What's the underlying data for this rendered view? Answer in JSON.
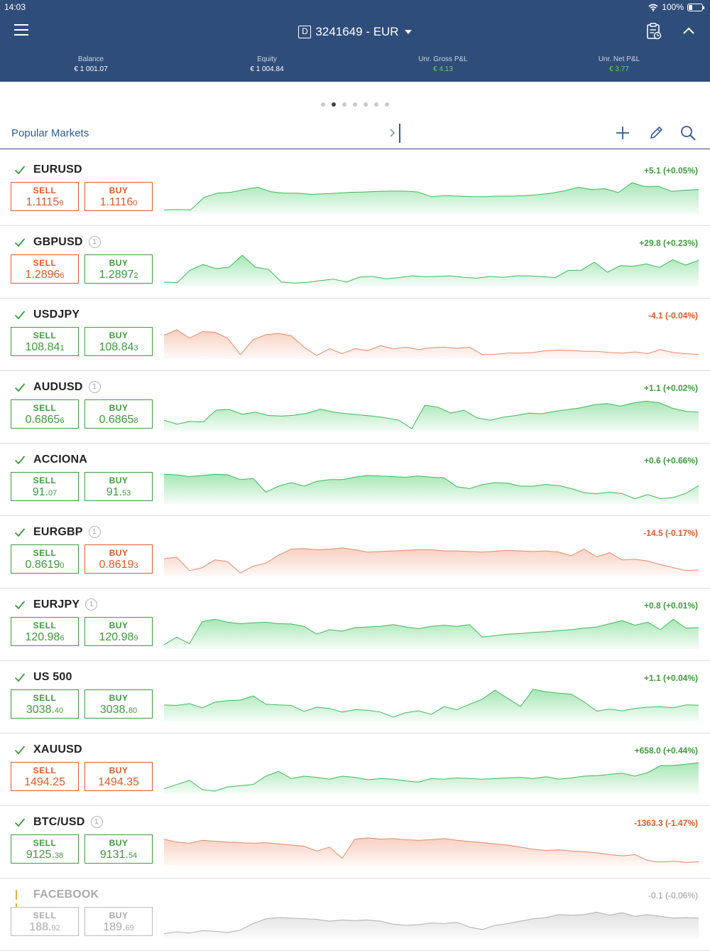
{
  "status_bar": {
    "time": "14:03",
    "battery": "100%"
  },
  "header": {
    "account_prefix": "D",
    "account": "3241649 - EUR",
    "stats": [
      {
        "label": "Balance",
        "value": "€ 1 001.07",
        "positive": false
      },
      {
        "label": "Equity",
        "value": "€ 1 004.84",
        "positive": false
      },
      {
        "label": "Unr. Gross P&L",
        "value": "€ 4.13",
        "positive": true
      },
      {
        "label": "Unr. Net P&L",
        "value": "€ 3.77",
        "positive": true
      }
    ]
  },
  "page_dots": {
    "count": 7,
    "active": 1
  },
  "watchlist": {
    "title": "Popular Markets"
  },
  "colors": {
    "header_bg": "#2f4d7a",
    "positive": "#3f9a3f",
    "negative": "#e05a2a",
    "inactive": "#aaaaaa"
  },
  "markets": [
    {
      "symbol": "EURUSD",
      "badge": "",
      "state": "active",
      "change": "+5.1 (+0.05%)",
      "direction": "pos",
      "sell": {
        "label": "SELL",
        "main": "1.1115",
        "pip": "9",
        "color": "red"
      },
      "buy": {
        "label": "BUY",
        "main": "1.1116",
        "pip": "0",
        "color": "red"
      },
      "spark": [
        0.04,
        0.05,
        0.04,
        0.46,
        0.6,
        0.63,
        0.72,
        0.8,
        0.65,
        0.6,
        0.6,
        0.56,
        0.58,
        0.6,
        0.63,
        0.64,
        0.66,
        0.67,
        0.67,
        0.64,
        0.48,
        0.52,
        0.5,
        0.48,
        0.48,
        0.5,
        0.5,
        0.52,
        0.55,
        0.6,
        0.68,
        0.8,
        0.72,
        0.75,
        0.62,
        0.95,
        0.82,
        0.83,
        0.66,
        0.7,
        0.72
      ]
    },
    {
      "symbol": "GBPUSD",
      "badge": "1",
      "state": "active",
      "change": "+29.8 (+0.23%)",
      "direction": "pos",
      "sell": {
        "label": "SELL",
        "main": "1.2896",
        "pip": "6",
        "color": "red"
      },
      "buy": {
        "label": "BUY",
        "main": "1.2897",
        "pip": "2",
        "color": "green"
      },
      "spark": [
        0.05,
        0.03,
        0.45,
        0.64,
        0.5,
        0.55,
        0.95,
        0.55,
        0.48,
        0.05,
        0.02,
        0.04,
        0.1,
        0.15,
        0.05,
        0.22,
        0.24,
        0.16,
        0.2,
        0.26,
        0.23,
        0.24,
        0.26,
        0.21,
        0.18,
        0.24,
        0.21,
        0.26,
        0.26,
        0.23,
        0.2,
        0.44,
        0.45,
        0.72,
        0.38,
        0.6,
        0.58,
        0.66,
        0.54,
        0.8,
        0.62,
        0.78
      ]
    },
    {
      "symbol": "USDJPY",
      "badge": "",
      "state": "active",
      "change": "-4.1 (-0.04%)",
      "direction": "neg",
      "sell": {
        "label": "SELL",
        "main": "108.84",
        "pip": "1",
        "color": "green"
      },
      "buy": {
        "label": "BUY",
        "main": "108.84",
        "pip": "3",
        "color": "green"
      },
      "spark": [
        0.7,
        0.88,
        0.6,
        0.82,
        0.8,
        0.6,
        0.05,
        0.55,
        0.72,
        0.76,
        0.68,
        0.3,
        0.02,
        0.25,
        0.08,
        0.25,
        0.18,
        0.35,
        0.24,
        0.3,
        0.22,
        0.28,
        0.3,
        0.26,
        0.3,
        0.05,
        0.06,
        0.1,
        0.1,
        0.12,
        0.18,
        0.2,
        0.19,
        0.16,
        0.16,
        0.12,
        0.1,
        0.14,
        0.08,
        0.22,
        0.12,
        0.08,
        0.06
      ]
    },
    {
      "symbol": "AUDUSD",
      "badge": "1",
      "state": "active",
      "change": "+1.1 (+0.02%)",
      "direction": "pos",
      "sell": {
        "label": "SELL",
        "main": "0.6865",
        "pip": "6",
        "color": "green"
      },
      "buy": {
        "label": "BUY",
        "main": "0.6865",
        "pip": "8",
        "color": "green"
      },
      "spark": [
        0.28,
        0.15,
        0.24,
        0.22,
        0.62,
        0.64,
        0.48,
        0.55,
        0.44,
        0.42,
        0.45,
        0.52,
        0.65,
        0.55,
        0.5,
        0.46,
        0.42,
        0.36,
        0.28,
        0.0,
        0.78,
        0.72,
        0.52,
        0.62,
        0.36,
        0.28,
        0.38,
        0.44,
        0.52,
        0.5,
        0.58,
        0.64,
        0.7,
        0.8,
        0.84,
        0.75,
        0.86,
        0.92,
        0.86,
        0.68,
        0.58,
        0.55
      ]
    },
    {
      "symbol": "ACCIONA",
      "badge": "",
      "state": "active",
      "change": "+0.6 (+0.66%)",
      "direction": "pos",
      "sell": {
        "label": "SELL",
        "main": "91.",
        "pip": "07",
        "color": "green"
      },
      "buy": {
        "label": "BUY",
        "main": "91.",
        "pip": "53",
        "color": "green"
      },
      "spark": [
        0.9,
        0.88,
        0.82,
        0.86,
        0.9,
        0.88,
        0.72,
        0.76,
        0.3,
        0.5,
        0.62,
        0.5,
        0.66,
        0.72,
        0.72,
        0.8,
        0.86,
        0.84,
        0.82,
        0.8,
        0.84,
        0.8,
        0.78,
        0.48,
        0.42,
        0.55,
        0.62,
        0.6,
        0.5,
        0.5,
        0.56,
        0.52,
        0.42,
        0.28,
        0.25,
        0.3,
        0.25,
        0.08,
        0.22,
        0.08,
        0.12,
        0.26,
        0.52
      ]
    },
    {
      "symbol": "EURGBP",
      "badge": "1",
      "state": "active",
      "change": "-14.5 (-0.17%)",
      "direction": "neg",
      "sell": {
        "label": "SELL",
        "main": "0.8619",
        "pip": "0",
        "color": "green"
      },
      "buy": {
        "label": "BUY",
        "main": "0.8619",
        "pip": "3",
        "color": "red"
      },
      "spark": [
        0.5,
        0.55,
        0.1,
        0.2,
        0.46,
        0.4,
        0.02,
        0.25,
        0.35,
        0.62,
        0.82,
        0.84,
        0.8,
        0.82,
        0.86,
        0.8,
        0.72,
        0.74,
        0.76,
        0.78,
        0.8,
        0.8,
        0.76,
        0.76,
        0.74,
        0.72,
        0.75,
        0.78,
        0.76,
        0.74,
        0.76,
        0.72,
        0.6,
        0.82,
        0.56,
        0.7,
        0.46,
        0.48,
        0.42,
        0.3,
        0.2,
        0.1,
        0.12
      ]
    },
    {
      "symbol": "EURJPY",
      "badge": "1",
      "state": "active",
      "change": "+0.8 (+0.01%)",
      "direction": "pos",
      "sell": {
        "label": "SELL",
        "main": "120.98",
        "pip": "6",
        "color": "green"
      },
      "buy": {
        "label": "BUY",
        "main": "120.98",
        "pip": "9",
        "color": "green"
      },
      "spark": [
        0.05,
        0.3,
        0.08,
        0.82,
        0.9,
        0.8,
        0.75,
        0.78,
        0.8,
        0.75,
        0.74,
        0.66,
        0.4,
        0.55,
        0.5,
        0.62,
        0.64,
        0.66,
        0.72,
        0.64,
        0.58,
        0.66,
        0.7,
        0.66,
        0.72,
        0.3,
        0.35,
        0.4,
        0.42,
        0.46,
        0.48,
        0.52,
        0.55,
        0.6,
        0.64,
        0.75,
        0.85,
        0.7,
        0.8,
        0.55,
        0.9,
        0.6,
        0.62
      ]
    },
    {
      "symbol": "US 500",
      "badge": "",
      "state": "active",
      "change": "+1.1 (+0.04%)",
      "direction": "pos",
      "sell": {
        "label": "SELL",
        "main": "3038.",
        "pip": "40",
        "color": "green"
      },
      "buy": {
        "label": "BUY",
        "main": "3038.",
        "pip": "80",
        "color": "green"
      },
      "spark": [
        0.46,
        0.44,
        0.5,
        0.36,
        0.55,
        0.6,
        0.62,
        0.76,
        0.48,
        0.46,
        0.44,
        0.24,
        0.38,
        0.34,
        0.22,
        0.3,
        0.28,
        0.22,
        0.05,
        0.2,
        0.26,
        0.14,
        0.4,
        0.3,
        0.48,
        0.65,
        0.95,
        0.68,
        0.4,
        0.98,
        0.9,
        0.85,
        0.82,
        0.56,
        0.25,
        0.32,
        0.26,
        0.34,
        0.38,
        0.4,
        0.36,
        0.46,
        0.45
      ]
    },
    {
      "symbol": "XAUUSD",
      "badge": "",
      "state": "active",
      "change": "+658.0 (+0.44%)",
      "direction": "pos",
      "sell": {
        "label": "SELL",
        "main": "1494.25",
        "pip": "",
        "color": "red"
      },
      "buy": {
        "label": "BUY",
        "main": "1494.35",
        "pip": "",
        "color": "red"
      },
      "spark": [
        0.08,
        0.22,
        0.36,
        0.05,
        0.0,
        0.14,
        0.18,
        0.22,
        0.5,
        0.66,
        0.42,
        0.5,
        0.46,
        0.4,
        0.5,
        0.46,
        0.38,
        0.42,
        0.4,
        0.34,
        0.3,
        0.42,
        0.4,
        0.44,
        0.42,
        0.4,
        0.42,
        0.44,
        0.46,
        0.42,
        0.48,
        0.4,
        0.44,
        0.5,
        0.52,
        0.56,
        0.6,
        0.5,
        0.62,
        0.85,
        0.86,
        0.9,
        0.95
      ]
    },
    {
      "symbol": "BTC/USD",
      "badge": "1",
      "state": "active",
      "change": "-1363.3 (-1.47%)",
      "direction": "neg",
      "sell": {
        "label": "SELL",
        "main": "9125.",
        "pip": "38",
        "color": "green"
      },
      "buy": {
        "label": "BUY",
        "main": "9131.",
        "pip": "54",
        "color": "green"
      },
      "spark": [
        0.82,
        0.72,
        0.68,
        0.78,
        0.75,
        0.72,
        0.7,
        0.68,
        0.7,
        0.66,
        0.62,
        0.58,
        0.42,
        0.55,
        0.18,
        0.82,
        0.86,
        0.82,
        0.84,
        0.8,
        0.78,
        0.8,
        0.84,
        0.78,
        0.74,
        0.7,
        0.66,
        0.62,
        0.55,
        0.48,
        0.44,
        0.46,
        0.42,
        0.4,
        0.36,
        0.3,
        0.26,
        0.3,
        0.1,
        0.05,
        0.08,
        0.04,
        0.06
      ]
    },
    {
      "symbol": "FACEBOOK",
      "badge": "",
      "state": "inactive",
      "change": "-0.1 (-0.06%)",
      "direction": "grey",
      "sell": {
        "label": "SELL",
        "main": "188.",
        "pip": "92",
        "color": "grey"
      },
      "buy": {
        "label": "BUY",
        "main": "189.",
        "pip": "69",
        "color": "grey"
      },
      "spark": [
        0.08,
        0.14,
        0.1,
        0.18,
        0.16,
        0.12,
        0.2,
        0.42,
        0.58,
        0.62,
        0.6,
        0.58,
        0.56,
        0.5,
        0.54,
        0.52,
        0.54,
        0.5,
        0.4,
        0.36,
        0.38,
        0.44,
        0.42,
        0.46,
        0.3,
        0.22,
        0.36,
        0.42,
        0.5,
        0.58,
        0.62,
        0.72,
        0.7,
        0.72,
        0.8,
        0.7,
        0.78,
        0.66,
        0.72,
        0.66,
        0.6,
        0.62,
        0.6
      ]
    }
  ]
}
